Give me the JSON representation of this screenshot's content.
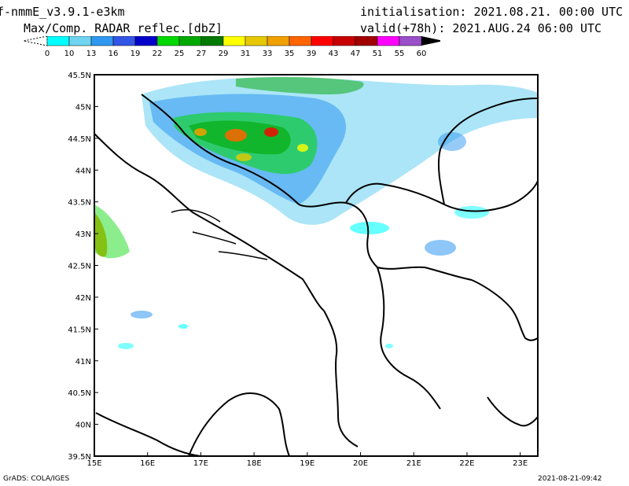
{
  "header": {
    "model": "f-nmmE_v3.9.1-e3km",
    "product": "Max/Comp. RADAR reflec.[dbZ]",
    "initialisation": "initialisation: 2021.08.21. 00:00 UTC",
    "valid": "valid(+78h): 2021.AUG.24 06:00 UTC"
  },
  "colorbar": {
    "ticks": [
      "0",
      "10",
      "13",
      "16",
      "19",
      "22",
      "25",
      "27",
      "29",
      "31",
      "33",
      "35",
      "39",
      "43",
      "47",
      "51",
      "55",
      "60"
    ],
    "colors": [
      "#00ffff",
      "#6fd4f0",
      "#2f98f0",
      "#3255e6",
      "#0000c8",
      "#00d800",
      "#00a800",
      "#007a00",
      "#ffff00",
      "#e6c800",
      "#f0a000",
      "#ff6400",
      "#ff0000",
      "#c80000",
      "#a00000",
      "#ff00ff",
      "#9a50c8",
      "#000000"
    ]
  },
  "map": {
    "lon_labels": [
      "15E",
      "16E",
      "17E",
      "18E",
      "19E",
      "20E",
      "21E",
      "22E",
      "23E"
    ],
    "lat_labels": [
      "45.5N",
      "45N",
      "44.5N",
      "44N",
      "43.5N",
      "43N",
      "42.5N",
      "42N",
      "41.5N",
      "41N",
      "40.5N",
      "40N",
      "39.5N"
    ],
    "lon_range": [
      15.0,
      23.33
    ],
    "lat_range": [
      39.5,
      45.5
    ]
  },
  "footer": {
    "credit": "GrADS: COLA/IGES",
    "timestamp": "2021-08-21-09:42"
  }
}
